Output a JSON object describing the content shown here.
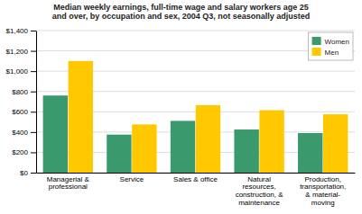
{
  "chart_data": {
    "type": "bar",
    "title": "Median weekly earnings, full-time wage and salary workers age 25\nand over, by occupation and sex, 2004 Q3, not seasonally adjusted",
    "categories": [
      "Managerial &\nprofessional",
      "Service",
      "Sales & office",
      "Natural\nresources,\nconstruction, &\nmaintenance",
      "Production,\ntransportation,\n& material-\nmoving"
    ],
    "series": [
      {
        "name": "Women",
        "color": "#3a9a6e",
        "values": [
          760,
          375,
          510,
          425,
          390
        ]
      },
      {
        "name": "Men",
        "color": "#ffc800",
        "values": [
          1100,
          475,
          665,
          615,
          575
        ]
      }
    ],
    "ylim": [
      0,
      1400
    ],
    "yticks": [
      {
        "value": 0,
        "label": "$0"
      },
      {
        "value": 200,
        "label": "$200"
      },
      {
        "value": 400,
        "label": "$400"
      },
      {
        "value": 600,
        "label": "$600"
      },
      {
        "value": 800,
        "label": "$800"
      },
      {
        "value": 1000,
        "label": "$1,000"
      },
      {
        "value": 1200,
        "label": "$1,200"
      },
      {
        "value": 1400,
        "label": "$1,400"
      }
    ],
    "grid": true,
    "legend": "upper right"
  }
}
